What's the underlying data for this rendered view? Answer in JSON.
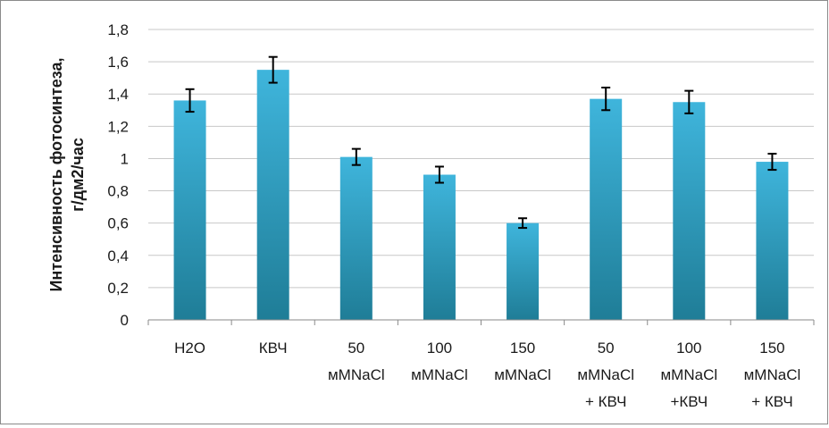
{
  "chart_data": {
    "type": "bar",
    "title": "",
    "xlabel": "",
    "ylabel": [
      "Интенсивность фотосинтеза,",
      "г/дм2/час"
    ],
    "ylim": [
      0,
      1.8
    ],
    "yticks": [
      "0",
      "0,2",
      "0,4",
      "0,6",
      "0,8",
      "1",
      "1,2",
      "1,4",
      "1,6",
      "1,8"
    ],
    "ytick_values": [
      0,
      0.2,
      0.4,
      0.6,
      0.8,
      1.0,
      1.2,
      1.4,
      1.6,
      1.8
    ],
    "grid": true,
    "categories": [
      [
        "H2O"
      ],
      [
        "КВЧ"
      ],
      [
        "50",
        "мMNaCl"
      ],
      [
        "100",
        "мMNaCl"
      ],
      [
        "150",
        "мMNaCl"
      ],
      [
        "50",
        "мMNaCl",
        "+ КВЧ"
      ],
      [
        "100",
        "мMNaCl",
        "+КВЧ"
      ],
      [
        "150",
        "мMNaCl",
        "+ КВЧ"
      ]
    ],
    "values": [
      1.36,
      1.55,
      1.01,
      0.9,
      0.6,
      1.37,
      1.35,
      0.98
    ],
    "errors": [
      0.07,
      0.08,
      0.05,
      0.05,
      0.03,
      0.07,
      0.07,
      0.05
    ],
    "colors": {
      "bar_top": "#3fb5dc",
      "bar_bottom": "#1f7d97",
      "grid": "#c8c8c8",
      "axis": "#8a8a8a",
      "error": "#000000"
    }
  }
}
